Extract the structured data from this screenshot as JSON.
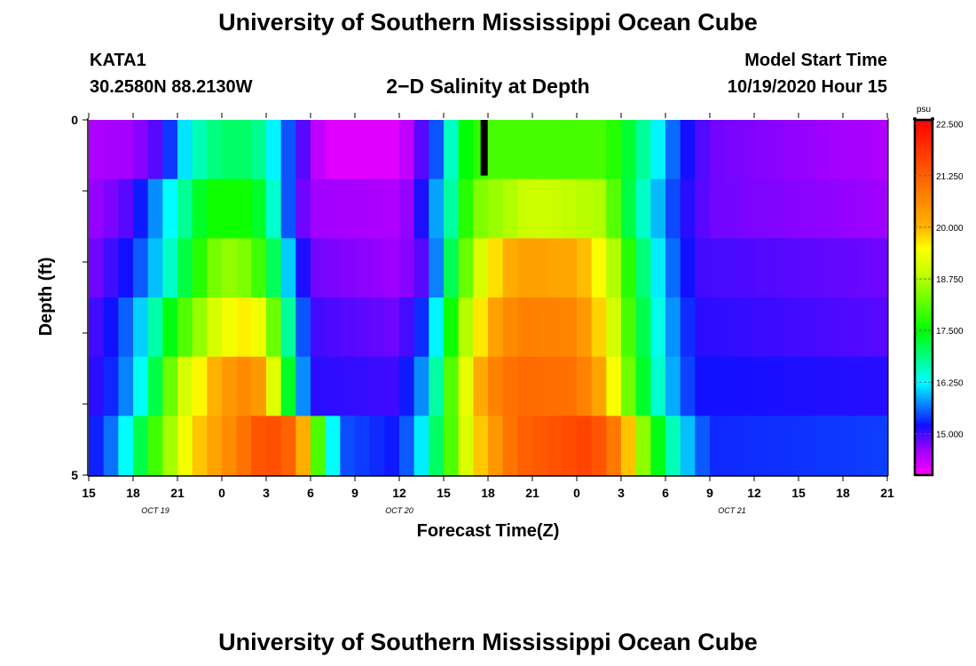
{
  "header": {
    "title": "University of Southern Mississippi Ocean Cube",
    "station": "KATA1",
    "coords": "30.2580N 88.2130W",
    "subtitle": "2−D Salinity at Depth",
    "model_start_label": "Model Start Time",
    "model_start_value": "10/19/2020 Hour 15",
    "footer_title": "University of Southern Mississippi Ocean Cube"
  },
  "chart_data": {
    "type": "heatmap",
    "title": "2−D Salinity at Depth",
    "xlabel": "Forecast Time(Z)",
    "ylabel": "Depth (ft)",
    "x_ticks": [
      "15",
      "18",
      "21",
      "0",
      "3",
      "6",
      "9",
      "12",
      "15",
      "18",
      "21",
      "0",
      "3",
      "6",
      "9",
      "12",
      "15",
      "18",
      "21"
    ],
    "date_labels": [
      {
        "label": "OCT 19",
        "tick_index": 1.5
      },
      {
        "label": "OCT 20",
        "tick_index": 7
      },
      {
        "label": "OCT 21",
        "tick_index": 14.5
      }
    ],
    "y_ticks": [
      "0",
      "5"
    ],
    "ylim": [
      0,
      5
    ],
    "hours": 54,
    "layers": [
      {
        "depth_ft": 0,
        "profile": [
          [
            0,
            14.5
          ],
          [
            3,
            14.6
          ],
          [
            5,
            15.0
          ],
          [
            7,
            16.5
          ],
          [
            9,
            17.0
          ],
          [
            11,
            17.0
          ],
          [
            12,
            16.6
          ],
          [
            13,
            15.8
          ],
          [
            15,
            14.6
          ],
          [
            16,
            14.2
          ],
          [
            21,
            14.2
          ],
          [
            22,
            14.6
          ],
          [
            24,
            15.8
          ],
          [
            25,
            17.3
          ],
          [
            27,
            18.0
          ],
          [
            35,
            18.0
          ],
          [
            36,
            17.5
          ],
          [
            38,
            16.5
          ],
          [
            40,
            15.3
          ],
          [
            42,
            14.8
          ],
          [
            54,
            14.5
          ]
        ]
      },
      {
        "depth_ft": 1,
        "profile": [
          [
            0,
            14.6
          ],
          [
            2,
            14.8
          ],
          [
            3,
            15.0
          ],
          [
            6,
            16.5
          ],
          [
            8,
            17.6
          ],
          [
            11,
            17.6
          ],
          [
            12,
            17.0
          ],
          [
            14,
            15.0
          ],
          [
            15,
            14.6
          ],
          [
            21,
            14.5
          ],
          [
            22,
            14.8
          ],
          [
            24,
            16.2
          ],
          [
            26,
            18.3
          ],
          [
            30,
            19.0
          ],
          [
            35,
            18.7
          ],
          [
            36,
            17.5
          ],
          [
            38,
            16.2
          ],
          [
            40,
            15.2
          ],
          [
            42,
            14.8
          ],
          [
            54,
            14.6
          ]
        ]
      },
      {
        "depth_ft": 2,
        "profile": [
          [
            0,
            14.7
          ],
          [
            3,
            15.3
          ],
          [
            5,
            16.2
          ],
          [
            7,
            17.5
          ],
          [
            9,
            18.6
          ],
          [
            11,
            18.3
          ],
          [
            12,
            17.6
          ],
          [
            14,
            15.5
          ],
          [
            15,
            14.8
          ],
          [
            21,
            14.6
          ],
          [
            23,
            15.0
          ],
          [
            25,
            17.8
          ],
          [
            27,
            19.5
          ],
          [
            29,
            20.3
          ],
          [
            33,
            20.2
          ],
          [
            35,
            19.2
          ],
          [
            37,
            17.3
          ],
          [
            39,
            15.8
          ],
          [
            41,
            15.0
          ],
          [
            54,
            14.8
          ]
        ]
      },
      {
        "depth_ft": 3,
        "profile": [
          [
            0,
            14.9
          ],
          [
            2,
            15.3
          ],
          [
            4,
            16.3
          ],
          [
            6,
            17.8
          ],
          [
            9,
            19.3
          ],
          [
            11,
            19.7
          ],
          [
            12,
            19.0
          ],
          [
            14,
            16.0
          ],
          [
            15,
            15.0
          ],
          [
            21,
            14.8
          ],
          [
            23,
            15.5
          ],
          [
            25,
            18.3
          ],
          [
            27,
            20.1
          ],
          [
            29,
            20.8
          ],
          [
            33,
            20.7
          ],
          [
            35,
            19.5
          ],
          [
            37,
            17.5
          ],
          [
            39,
            16.0
          ],
          [
            41,
            15.1
          ],
          [
            54,
            14.9
          ]
        ]
      },
      {
        "depth_ft": 4,
        "profile": [
          [
            0,
            15.0
          ],
          [
            2,
            15.4
          ],
          [
            4,
            16.6
          ],
          [
            6,
            18.8
          ],
          [
            9,
            20.3
          ],
          [
            11,
            20.7
          ],
          [
            12,
            20.1
          ],
          [
            14,
            16.4
          ],
          [
            15,
            15.1
          ],
          [
            21,
            15.0
          ],
          [
            23,
            16.0
          ],
          [
            25,
            18.8
          ],
          [
            27,
            20.6
          ],
          [
            29,
            21.1
          ],
          [
            33,
            21.0
          ],
          [
            35,
            20.0
          ],
          [
            37,
            17.7
          ],
          [
            39,
            16.1
          ],
          [
            41,
            15.2
          ],
          [
            54,
            15.1
          ]
        ]
      },
      {
        "depth_ft": 5,
        "profile": [
          [
            0,
            15.1
          ],
          [
            2,
            15.8
          ],
          [
            4,
            17.6
          ],
          [
            7,
            19.7
          ],
          [
            10,
            20.8
          ],
          [
            12,
            21.6
          ],
          [
            14,
            21.1
          ],
          [
            16,
            17.0
          ],
          [
            17,
            15.5
          ],
          [
            21,
            15.2
          ],
          [
            23,
            16.5
          ],
          [
            26,
            19.6
          ],
          [
            29,
            21.2
          ],
          [
            34,
            21.7
          ],
          [
            36,
            20.6
          ],
          [
            38,
            17.8
          ],
          [
            40,
            16.2
          ],
          [
            42,
            15.3
          ],
          [
            54,
            15.4
          ]
        ]
      }
    ],
    "top_stripe_hour": 26.5,
    "colorbar": {
      "unit": "psu",
      "ticks": [
        "15.000",
        "16.250",
        "17.500",
        "18.750",
        "20.000",
        "21.250",
        "22.500"
      ],
      "min": 14.0,
      "max": 22.6,
      "stops": [
        {
          "v": 14.0,
          "c": "#ff00ff"
        },
        {
          "v": 14.6,
          "c": "#a000ff"
        },
        {
          "v": 15.2,
          "c": "#1010ff"
        },
        {
          "v": 16.25,
          "c": "#00ffff"
        },
        {
          "v": 17.5,
          "c": "#00ff00"
        },
        {
          "v": 18.9,
          "c": "#c8ff00"
        },
        {
          "v": 19.5,
          "c": "#ffff00"
        },
        {
          "v": 20.0,
          "c": "#ffb400"
        },
        {
          "v": 21.25,
          "c": "#ff6000"
        },
        {
          "v": 22.6,
          "c": "#ff0000"
        }
      ]
    }
  }
}
